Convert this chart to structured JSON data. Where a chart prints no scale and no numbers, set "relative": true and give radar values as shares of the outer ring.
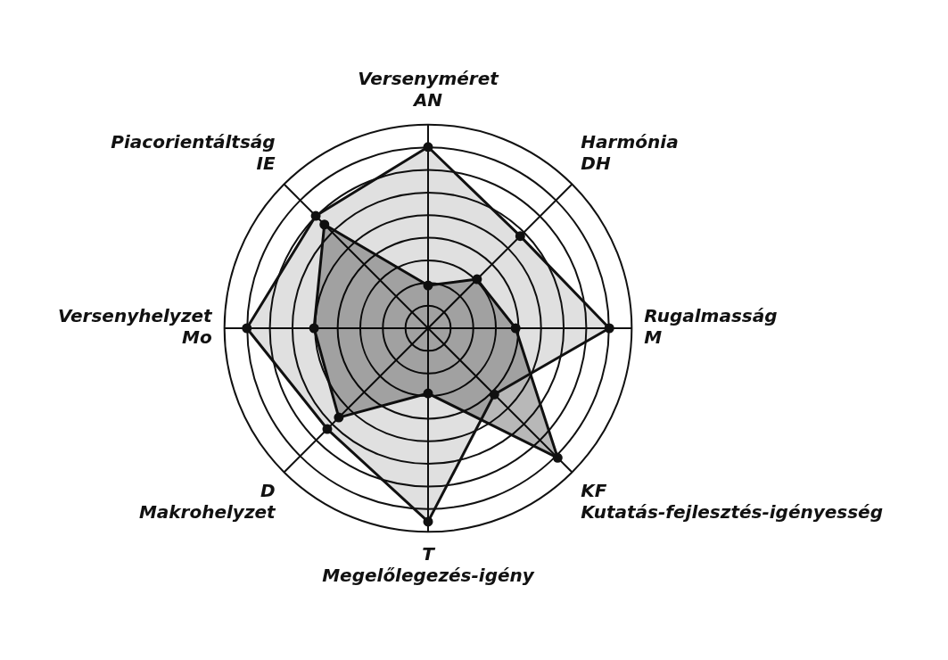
{
  "chart_data": {
    "type": "radar",
    "relative": true,
    "categories": [
      "Versenyméret\nAN",
      "Harmónia\nDH",
      "Rugalmasság\nM",
      "KF\nKutatás-fejlesztés-igényesség",
      "T\nMegelőlegezés-igény",
      "D\nMakrohelyzet",
      "Versenyhelyzet\nMo",
      "Piacorientáltság\nIE"
    ],
    "series": [
      {
        "color": "#111111",
        "values": [
          0.89,
          0.64,
          0.89,
          0.46,
          0.95,
          0.7,
          0.89,
          0.78
        ]
      },
      {
        "color": "#111111",
        "values": [
          0.21,
          0.34,
          0.43,
          0.9,
          0.32,
          0.62,
          0.56,
          0.72
        ]
      }
    ],
    "grid": true,
    "legend": false,
    "marker": "circle",
    "line_style": "solid"
  }
}
